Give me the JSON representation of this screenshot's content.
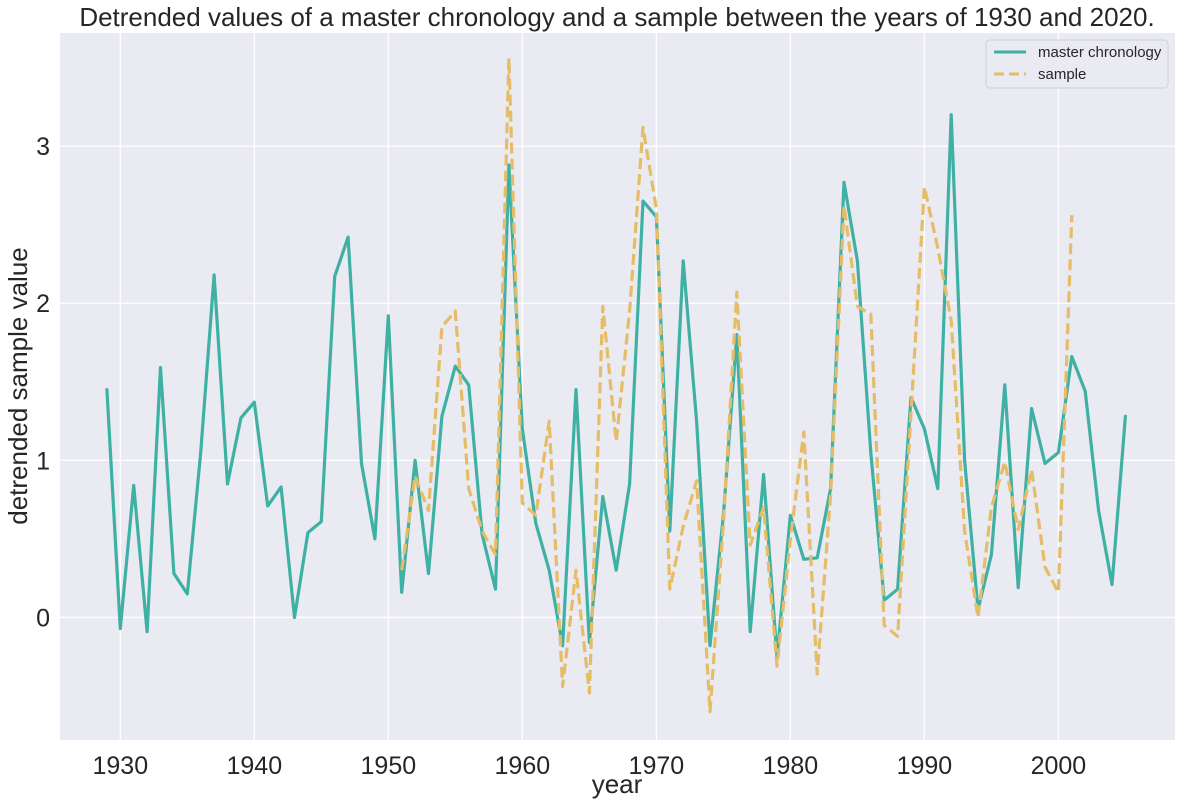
{
  "chart_data": {
    "type": "line",
    "title": "Detrended values of a master chronology and a sample between the years of 1930 and 2020.",
    "xlabel": "year",
    "ylabel": "detrended sample value",
    "xlim": [
      1925.5,
      2008.7
    ],
    "ylim": [
      -0.78,
      3.72
    ],
    "xticks": [
      1930,
      1940,
      1950,
      1960,
      1970,
      1980,
      1990,
      2000
    ],
    "yticks": [
      0,
      1,
      2,
      3
    ],
    "grid": true,
    "background": "#eaeaf2",
    "legend_position": "top-right",
    "series": [
      {
        "name": "master chronology",
        "color": "#3eb0a4",
        "style": "solid",
        "x": [
          1929,
          1930,
          1931,
          1932,
          1933,
          1934,
          1935,
          1936,
          1937,
          1938,
          1939,
          1940,
          1941,
          1942,
          1943,
          1944,
          1945,
          1946,
          1947,
          1948,
          1949,
          1950,
          1951,
          1952,
          1953,
          1954,
          1955,
          1956,
          1957,
          1958,
          1959,
          1960,
          1961,
          1962,
          1963,
          1964,
          1965,
          1966,
          1967,
          1968,
          1969,
          1970,
          1971,
          1972,
          1973,
          1974,
          1975,
          1976,
          1977,
          1978,
          1979,
          1980,
          1981,
          1982,
          1983,
          1984,
          1985,
          1986,
          1987,
          1988,
          1989,
          1990,
          1991,
          1992,
          1993,
          1994,
          1995,
          1996,
          1997,
          1998,
          1999,
          2000,
          2001,
          2002,
          2003,
          2004,
          2005
        ],
        "values": [
          1.45,
          -0.07,
          0.84,
          -0.09,
          1.59,
          0.28,
          0.15,
          1.05,
          2.18,
          0.85,
          1.27,
          1.37,
          0.71,
          0.83,
          0.0,
          0.54,
          0.61,
          2.17,
          2.42,
          0.98,
          0.5,
          1.92,
          0.16,
          1.0,
          0.28,
          1.28,
          1.6,
          1.48,
          0.53,
          0.18,
          2.88,
          1.2,
          0.6,
          0.3,
          -0.18,
          1.45,
          -0.16,
          0.77,
          0.3,
          0.85,
          2.65,
          2.55,
          0.55,
          2.27,
          1.25,
          -0.18,
          0.65,
          1.8,
          -0.09,
          0.91,
          -0.25,
          0.65,
          0.37,
          0.38,
          0.82,
          2.77,
          2.27,
          1.05,
          0.11,
          0.18,
          1.4,
          1.2,
          0.82,
          3.2,
          1.0,
          0.05,
          0.4,
          1.48,
          0.19,
          1.33,
          0.98,
          1.05,
          1.66,
          1.44,
          0.68,
          0.21,
          1.28
        ]
      },
      {
        "name": "sample",
        "color": "#e5bd67",
        "style": "dashed",
        "x": [
          1951,
          1952,
          1953,
          1954,
          1955,
          1956,
          1957,
          1958,
          1959,
          1960,
          1961,
          1962,
          1963,
          1964,
          1965,
          1966,
          1967,
          1968,
          1969,
          1970,
          1971,
          1972,
          1973,
          1974,
          1975,
          1976,
          1977,
          1978,
          1979,
          1980,
          1981,
          1982,
          1983,
          1984,
          1985,
          1986,
          1987,
          1988,
          1989,
          1990,
          1991,
          1992,
          1993,
          1994,
          1995,
          1996,
          1997,
          1998,
          1999,
          2000,
          2001
        ],
        "values": [
          0.3,
          0.9,
          0.68,
          1.85,
          1.95,
          0.82,
          0.55,
          0.4,
          3.56,
          0.73,
          0.65,
          1.25,
          -0.44,
          0.3,
          -0.48,
          1.98,
          1.12,
          1.95,
          3.12,
          2.6,
          0.18,
          0.58,
          0.87,
          -0.6,
          0.6,
          2.07,
          0.46,
          0.7,
          -0.31,
          0.5,
          1.18,
          -0.36,
          0.78,
          2.62,
          1.98,
          1.93,
          -0.05,
          -0.12,
          1.3,
          2.74,
          2.35,
          1.89,
          0.55,
          0.0,
          0.7,
          0.99,
          0.56,
          0.94,
          0.32,
          0.16,
          2.56
        ]
      }
    ]
  }
}
